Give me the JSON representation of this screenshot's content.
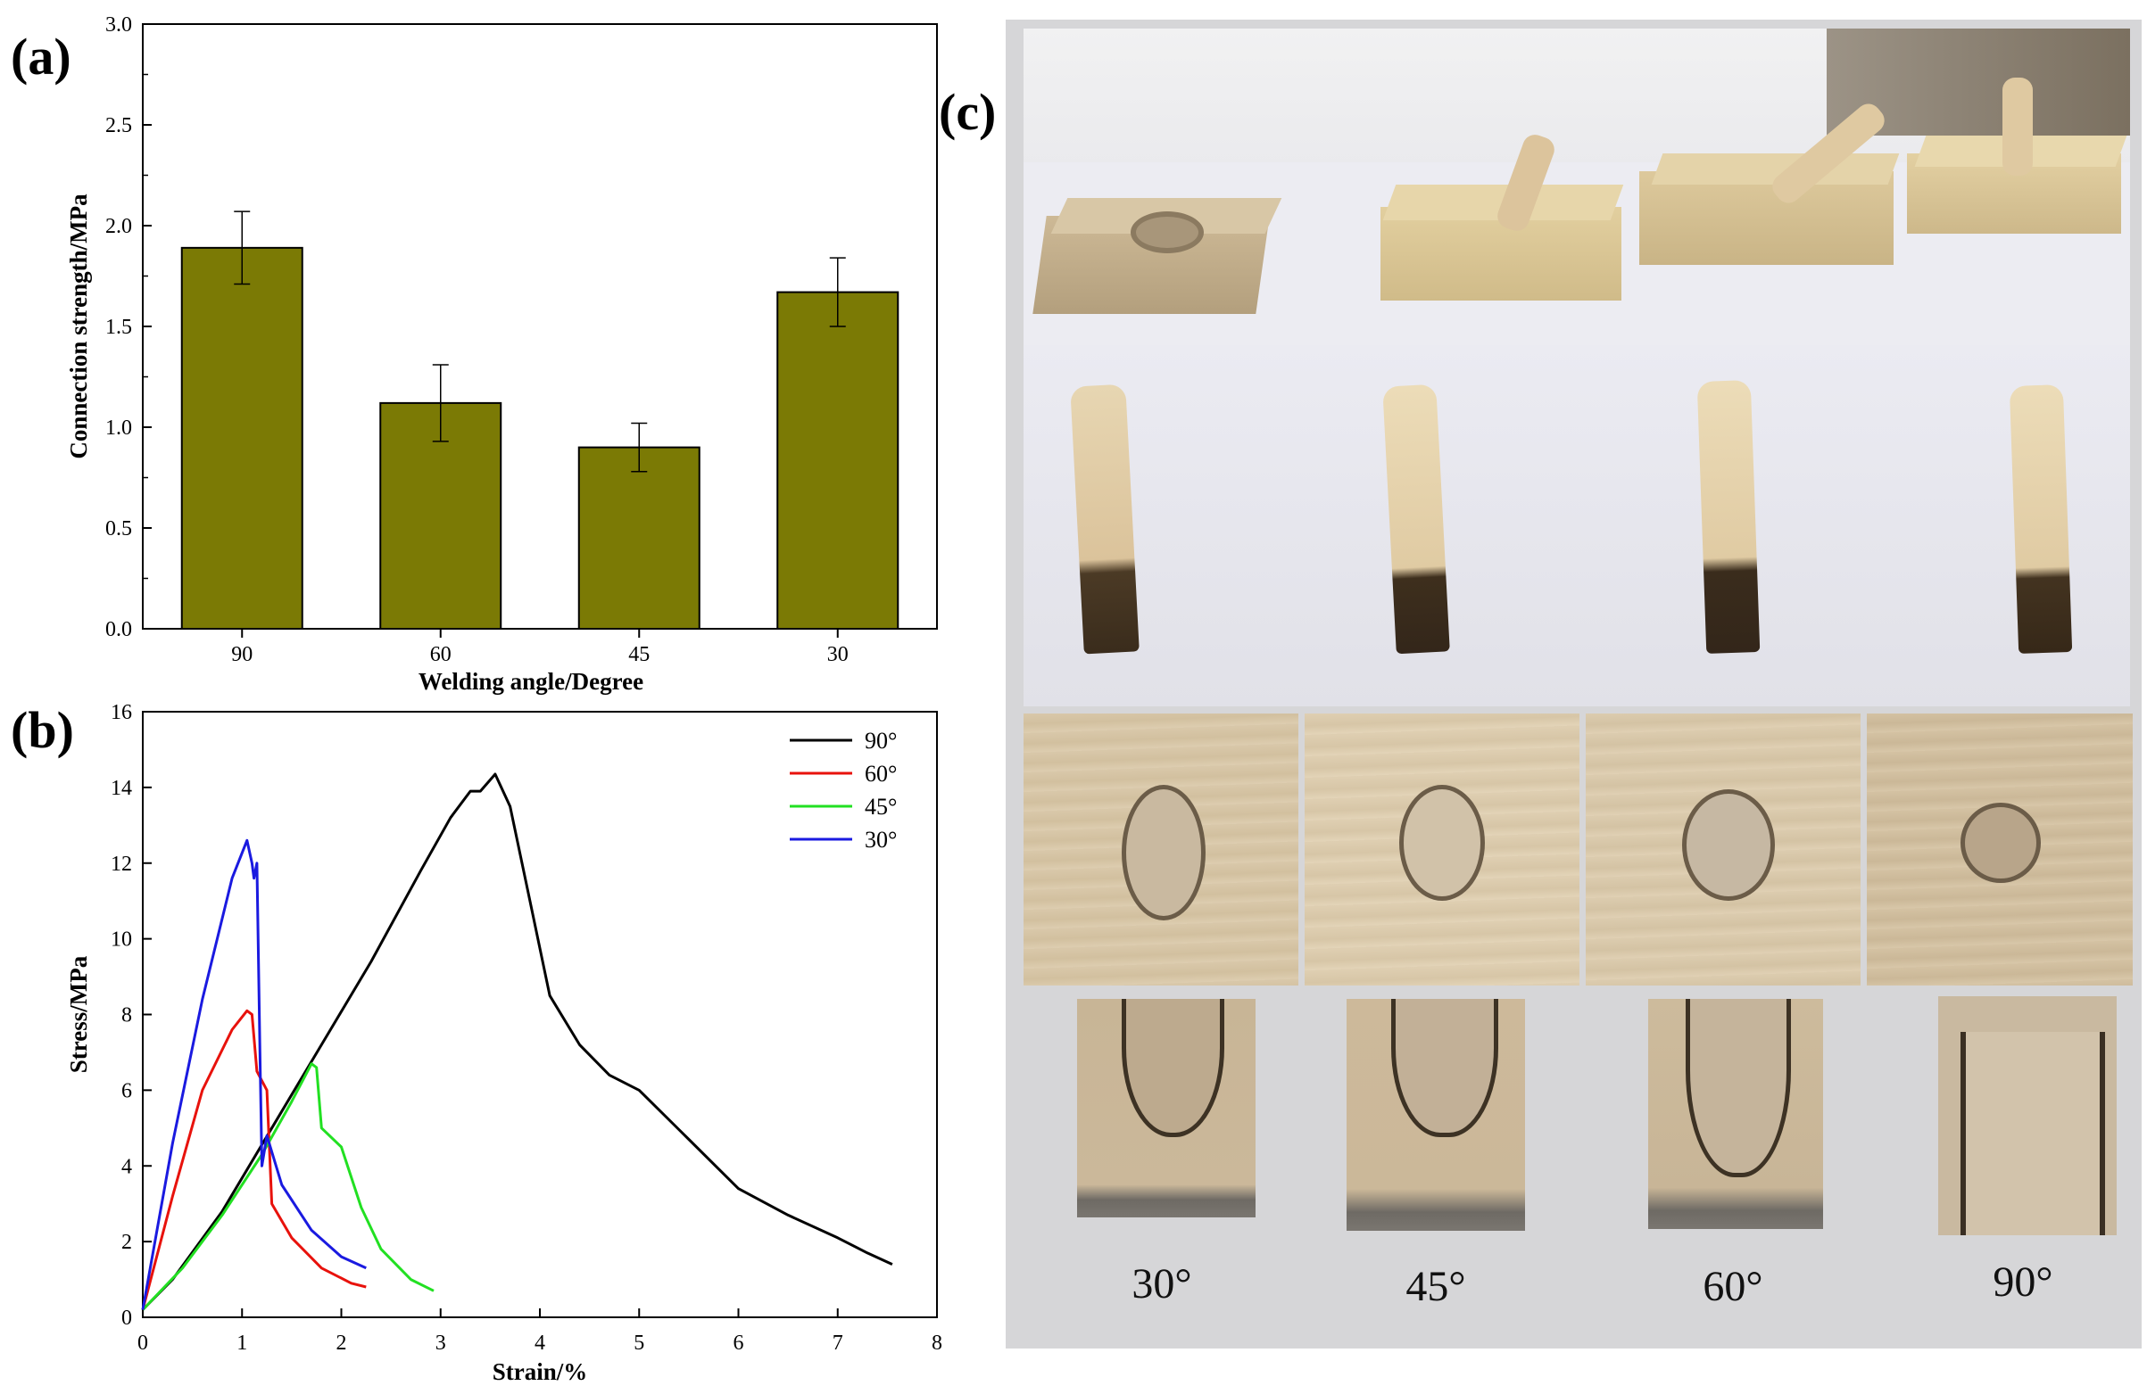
{
  "labels": {
    "a": "(a)",
    "b": "(b)",
    "c": "(c)"
  },
  "chart_a": {
    "chart_data": {
      "type": "bar",
      "categories": [
        "90",
        "60",
        "45",
        "30"
      ],
      "values": [
        1.89,
        1.12,
        0.9,
        1.67
      ],
      "errors": [
        0.18,
        0.19,
        0.12,
        0.17
      ],
      "xlabel": "Welding angle/Degree",
      "ylabel": "Connection strength/MPa",
      "ylim": [
        0,
        3.0
      ],
      "yticks": [
        "0.0",
        "0.5",
        "1.0",
        "1.5",
        "2.0",
        "2.5",
        "3.0"
      ],
      "bar_color": "#7b7a05"
    }
  },
  "chart_b": {
    "chart_data": {
      "type": "line",
      "xlabel": "Strain/%",
      "ylabel": "Stress/MPa",
      "xlim": [
        0,
        8
      ],
      "ylim": [
        0,
        16
      ],
      "xticks": [
        "0",
        "1",
        "2",
        "3",
        "4",
        "5",
        "6",
        "7",
        "8"
      ],
      "yticks": [
        "0",
        "2",
        "4",
        "6",
        "8",
        "10",
        "12",
        "14",
        "16"
      ],
      "legend_position": "top-right",
      "series": [
        {
          "name": "90°",
          "color": "#000000",
          "x": [
            0,
            0.3,
            0.8,
            1.3,
            1.8,
            2.3,
            2.8,
            3.1,
            3.3,
            3.4,
            3.5,
            3.55,
            3.7,
            3.9,
            4.1,
            4.4,
            4.7,
            5.0,
            5.5,
            6.0,
            6.5,
            7.0,
            7.3,
            7.55
          ],
          "y": [
            0.2,
            1.0,
            2.8,
            5.0,
            7.2,
            9.4,
            11.8,
            13.2,
            13.9,
            13.9,
            14.2,
            14.35,
            13.5,
            11.0,
            8.5,
            7.2,
            6.4,
            6.0,
            4.7,
            3.4,
            2.7,
            2.1,
            1.7,
            1.4
          ]
        },
        {
          "name": "60°",
          "color": "#e8120c",
          "x": [
            0,
            0.3,
            0.6,
            0.9,
            1.05,
            1.1,
            1.15,
            1.25,
            1.3,
            1.5,
            1.8,
            2.1,
            2.25
          ],
          "y": [
            0.2,
            3.2,
            6.0,
            7.6,
            8.1,
            8.0,
            6.5,
            6.0,
            3.0,
            2.1,
            1.3,
            0.9,
            0.8
          ]
        },
        {
          "name": "45°",
          "color": "#22e022",
          "x": [
            0,
            0.4,
            0.8,
            1.2,
            1.5,
            1.7,
            1.75,
            1.8,
            2.0,
            2.2,
            2.4,
            2.7,
            2.93
          ],
          "y": [
            0.2,
            1.3,
            2.7,
            4.3,
            5.7,
            6.7,
            6.6,
            5.0,
            4.5,
            2.9,
            1.8,
            1.0,
            0.7
          ]
        },
        {
          "name": "30°",
          "color": "#1a1ae0",
          "x": [
            0,
            0.3,
            0.6,
            0.9,
            1.05,
            1.1,
            1.12,
            1.15,
            1.18,
            1.2,
            1.25,
            1.4,
            1.7,
            2.0,
            2.25
          ],
          "y": [
            0.2,
            4.6,
            8.4,
            11.6,
            12.6,
            12.0,
            11.6,
            12.0,
            7.0,
            4.0,
            4.8,
            3.5,
            2.3,
            1.6,
            1.3
          ]
        }
      ]
    }
  },
  "captions": [
    "30°",
    "45°",
    "60°",
    "90°"
  ]
}
